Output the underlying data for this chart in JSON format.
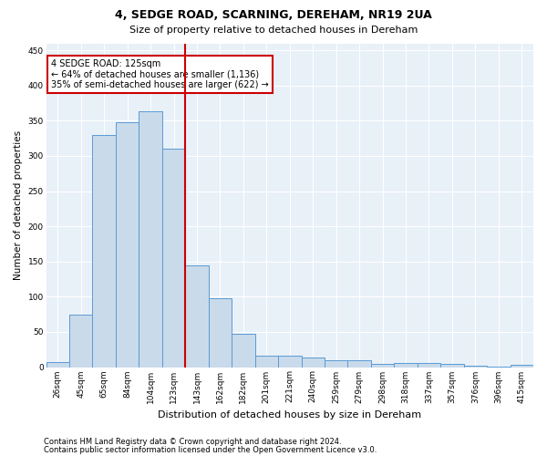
{
  "title1": "4, SEDGE ROAD, SCARNING, DEREHAM, NR19 2UA",
  "title2": "Size of property relative to detached houses in Dereham",
  "xlabel": "Distribution of detached houses by size in Dereham",
  "ylabel": "Number of detached properties",
  "categories": [
    "26sqm",
    "45sqm",
    "65sqm",
    "84sqm",
    "104sqm",
    "123sqm",
    "143sqm",
    "162sqm",
    "182sqm",
    "201sqm",
    "221sqm",
    "240sqm",
    "259sqm",
    "279sqm",
    "298sqm",
    "318sqm",
    "337sqm",
    "357sqm",
    "376sqm",
    "396sqm",
    "415sqm"
  ],
  "values": [
    7,
    75,
    330,
    348,
    363,
    310,
    144,
    98,
    47,
    16,
    16,
    13,
    10,
    10,
    4,
    6,
    6,
    4,
    2,
    1,
    3
  ],
  "bar_color": "#c9daea",
  "bar_edge_color": "#5b9bd5",
  "vline_x": 5.5,
  "vline_color": "#cc0000",
  "annotation_text": "4 SEDGE ROAD: 125sqm\n← 64% of detached houses are smaller (1,136)\n35% of semi-detached houses are larger (622) →",
  "annotation_box_color": "#ffffff",
  "annotation_box_edge": "#cc0000",
  "footer1": "Contains HM Land Registry data © Crown copyright and database right 2024.",
  "footer2": "Contains public sector information licensed under the Open Government Licence v3.0.",
  "ylim": [
    0,
    460
  ],
  "yticks": [
    0,
    50,
    100,
    150,
    200,
    250,
    300,
    350,
    400,
    450
  ],
  "background_color": "#e8f0f8",
  "grid_color": "#ffffff",
  "title1_fontsize": 9,
  "title2_fontsize": 8,
  "xlabel_fontsize": 8,
  "ylabel_fontsize": 7.5,
  "tick_fontsize": 6.5,
  "annot_fontsize": 7,
  "footer_fontsize": 6
}
